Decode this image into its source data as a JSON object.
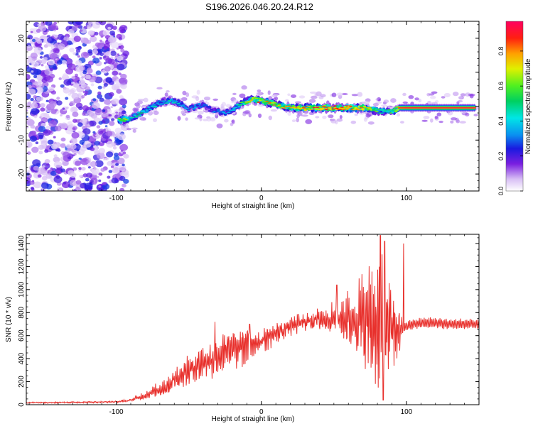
{
  "figure": {
    "title": "S196.2026.046.20.24.R12"
  },
  "chart_data": [
    {
      "type": "heatmap",
      "title": "S196.2026.046.20.24.R12",
      "xlabel": "Height of straight line (km)",
      "ylabel": "Frequency (Hz)",
      "xlim": [
        -162,
        150
      ],
      "ylim": [
        -25,
        25
      ],
      "x_ticks": [
        -100,
        0,
        100
      ],
      "x_tick_labels": [
        "-100",
        "0",
        "100"
      ],
      "y_ticks": [
        -20,
        -10,
        0,
        10,
        20
      ],
      "y_tick_labels": [
        "-20",
        "-10",
        "0",
        "10",
        "20"
      ],
      "colorbar": {
        "label": "Normalized spectral amplitude",
        "range": [
          0,
          0.97
        ],
        "ticks": [
          0.0,
          0.2,
          0.4,
          0.6,
          0.8
        ],
        "tick_labels": [
          "0.0",
          "0.2",
          "0.4",
          "0.6",
          "0.8"
        ],
        "colormap": "rainbow"
      },
      "noise_region_x": [
        -162,
        -95
      ],
      "ridge": {
        "x": [
          -98,
          -95,
          -90,
          -85,
          -80,
          -75,
          -70,
          -65,
          -60,
          -55,
          -50,
          -45,
          -40,
          -35,
          -30,
          -25,
          -20,
          -15,
          -10,
          -5,
          0,
          5,
          10,
          20,
          30,
          40,
          50,
          60,
          70,
          80,
          90,
          95,
          100,
          110,
          120,
          130,
          140,
          148
        ],
        "frequency": [
          -4,
          -4,
          -3.5,
          -2.5,
          -1.5,
          0,
          1,
          1.5,
          1.5,
          0.5,
          -1,
          0,
          0.5,
          -1,
          -1.5,
          -2,
          -1,
          0.5,
          1.5,
          2,
          1.5,
          1,
          0.5,
          -0.5,
          -0.5,
          -0.5,
          -0.5,
          -0.5,
          -0.5,
          -1.5,
          -1.5,
          -0.5,
          -0.5,
          -0.5,
          -0.5,
          -0.5,
          -0.5,
          -0.5
        ],
        "amplitude": [
          0.8,
          0.7,
          0.45,
          0.5,
          0.45,
          0.45,
          0.4,
          0.45,
          0.45,
          0.4,
          0.35,
          0.4,
          0.35,
          0.3,
          0.35,
          0.35,
          0.4,
          0.55,
          0.7,
          0.8,
          0.85,
          0.85,
          0.75,
          0.8,
          0.85,
          0.9,
          0.9,
          0.9,
          0.85,
          0.6,
          0.55,
          0.9,
          0.95,
          0.95,
          0.95,
          0.95,
          0.95,
          0.95
        ]
      }
    },
    {
      "type": "line",
      "xlabel": "Height of straight line (km)",
      "ylabel": "SNR (10 * v/v)",
      "xlim": [
        -162,
        150
      ],
      "ylim": [
        0,
        1480
      ],
      "x_ticks": [
        -100,
        0,
        100
      ],
      "x_tick_labels": [
        "-100",
        "0",
        "100"
      ],
      "y_ticks": [
        0,
        200,
        400,
        600,
        800,
        1000,
        1200,
        1400
      ],
      "y_tick_labels": [
        "0",
        "200",
        "400",
        "600",
        "800",
        "1000",
        "1200",
        "1400"
      ],
      "color": "#e8302c",
      "envelope": {
        "x": [
          -162,
          -140,
          -120,
          -100,
          -95,
          -90,
          -85,
          -80,
          -75,
          -70,
          -65,
          -60,
          -55,
          -50,
          -45,
          -40,
          -35,
          -30,
          -25,
          -20,
          -15,
          -10,
          -5,
          0,
          5,
          10,
          15,
          20,
          25,
          30,
          35,
          40,
          45,
          50,
          55,
          60,
          65,
          70,
          75,
          80,
          85,
          90,
          95,
          100,
          105,
          110,
          120,
          130,
          140,
          150
        ],
        "value": [
          18,
          20,
          22,
          25,
          30,
          40,
          60,
          80,
          110,
          130,
          160,
          220,
          260,
          290,
          340,
          370,
          390,
          420,
          450,
          480,
          500,
          520,
          540,
          560,
          590,
          620,
          650,
          680,
          700,
          720,
          730,
          740,
          740,
          750,
          750,
          740,
          740,
          720,
          720,
          700,
          700,
          650,
          650,
          680,
          700,
          710,
          710,
          700,
          700,
          700
        ]
      },
      "fluctuation": {
        "x": [
          -162,
          -100,
          -80,
          -50,
          -20,
          0,
          30,
          50,
          60,
          70,
          80,
          85,
          90,
          95,
          100,
          150
        ],
        "value": [
          8,
          8,
          40,
          150,
          220,
          120,
          90,
          150,
          300,
          450,
          650,
          650,
          400,
          250,
          80,
          50
        ]
      },
      "peaks": [
        {
          "x": -32,
          "value": 720
        },
        {
          "x": -8,
          "value": 700
        },
        {
          "x": 52,
          "value": 1040
        },
        {
          "x": 82,
          "value": 1470
        },
        {
          "x": 85,
          "value": 1420
        },
        {
          "x": 98,
          "value": 1400
        },
        {
          "x": 84,
          "value": 40
        }
      ]
    }
  ]
}
